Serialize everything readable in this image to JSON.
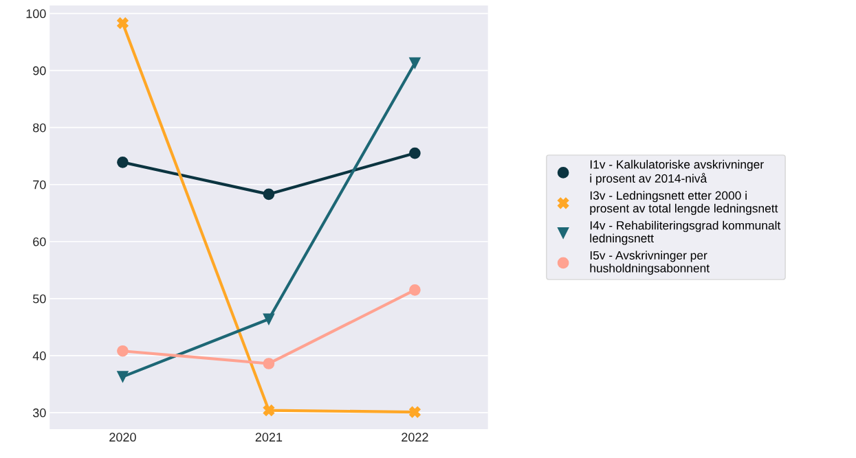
{
  "chart_data": {
    "type": "line",
    "categories": [
      "2020",
      "2021",
      "2022"
    ],
    "series": [
      {
        "name": "I1v - Kalkulatoriske avskrivninger\ni prosent av 2014-nivå",
        "color": "#0b3440",
        "marker": "circle",
        "values": [
          73.9,
          68.3,
          75.5
        ]
      },
      {
        "name": "I3v - Ledningsnett etter 2000 i\nprosent av total lengde ledningsnett",
        "color": "#ffa726",
        "marker": "cross",
        "values": [
          98.3,
          30.4,
          30.1
        ]
      },
      {
        "name": "I4v - Rehabiliteringsgrad kommunalt\nledningsnett",
        "color": "#1d6775",
        "marker": "triangle",
        "values": [
          36.3,
          46.4,
          91.3
        ]
      },
      {
        "name": "I5v - Avskrivninger per\nhusholdningsabonnent",
        "color": "#ffa291",
        "marker": "circle",
        "values": [
          40.8,
          38.6,
          51.5
        ]
      }
    ],
    "ylim": [
      27.1,
      101.4
    ],
    "yticks": [
      30,
      40,
      50,
      60,
      70,
      80,
      90,
      100
    ],
    "grid": "y",
    "legend": "right",
    "line_style": "solid"
  }
}
